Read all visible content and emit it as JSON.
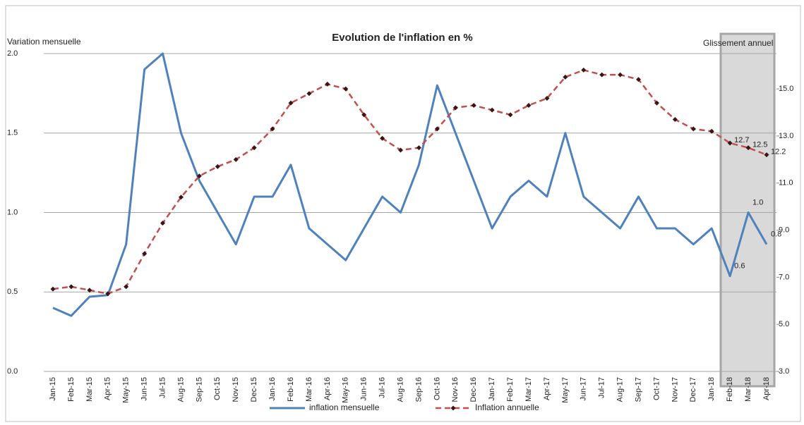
{
  "chart_data": {
    "type": "line",
    "title": "Evolution de l'inflation en %",
    "y_label": "Variation mensuelle",
    "y2_label": "Glissement annuel",
    "categories": [
      "Jan-15",
      "Feb-15",
      "Mar-15",
      "Apr-15",
      "May-15",
      "Jun-15",
      "Jul-15",
      "Aug-15",
      "Sep-15",
      "Oct-15",
      "Nov-15",
      "Dec-15",
      "Jan-16",
      "Feb-16",
      "Mar-16",
      "Apr-16",
      "May-16",
      "Jun-16",
      "Jul-16",
      "Aug-16",
      "Sep-16",
      "Oct-16",
      "Nov-16",
      "Dec-16",
      "Jan-17",
      "Feb-17",
      "Mar-17",
      "Apr-17",
      "May-17",
      "Jun-17",
      "Jul-17",
      "Aug-17",
      "Sep-17",
      "Oct-17",
      "Nov-17",
      "Dec-17",
      "Jan-18",
      "Feb-18",
      "Mar-18",
      "Apr-18"
    ],
    "series": [
      {
        "name": "inflation mensuelle",
        "color": "#4f81bd",
        "style": "solid",
        "axis": "y",
        "values": [
          0.4,
          0.35,
          0.47,
          0.48,
          0.8,
          1.9,
          2.0,
          1.5,
          1.2,
          1.0,
          0.8,
          1.1,
          1.1,
          1.3,
          0.9,
          0.8,
          0.7,
          0.9,
          1.1,
          1.0,
          1.3,
          1.8,
          1.5,
          1.2,
          0.9,
          1.1,
          1.2,
          1.1,
          1.5,
          1.1,
          1.0,
          0.9,
          1.1,
          0.9,
          0.9,
          0.8,
          0.9,
          0.6,
          1.0,
          0.8
        ],
        "value_labels": [
          null,
          null,
          null,
          null,
          null,
          null,
          null,
          null,
          null,
          null,
          null,
          null,
          null,
          null,
          null,
          null,
          null,
          null,
          null,
          null,
          null,
          null,
          null,
          null,
          null,
          null,
          null,
          null,
          null,
          null,
          null,
          null,
          null,
          null,
          null,
          null,
          null,
          "0.6",
          "1.0",
          "0.8"
        ]
      },
      {
        "name": "Inflation annuelle",
        "color": "#c0504d",
        "style": "dashed",
        "marker_color": "#3b1515",
        "axis": "y2",
        "values": [
          6.5,
          6.6,
          6.45,
          6.3,
          6.6,
          8.0,
          9.3,
          10.4,
          11.3,
          11.7,
          12.0,
          12.5,
          13.3,
          14.4,
          14.8,
          15.2,
          15.0,
          13.9,
          12.9,
          12.4,
          12.5,
          13.3,
          14.2,
          14.3,
          14.1,
          13.9,
          14.3,
          14.6,
          15.5,
          15.8,
          15.6,
          15.6,
          15.4,
          14.4,
          13.7,
          13.3,
          13.2,
          12.7,
          12.5,
          12.2
        ],
        "value_labels": [
          null,
          null,
          null,
          null,
          null,
          null,
          null,
          null,
          null,
          null,
          null,
          null,
          null,
          null,
          null,
          null,
          null,
          null,
          null,
          null,
          null,
          null,
          null,
          null,
          null,
          null,
          null,
          null,
          null,
          null,
          null,
          null,
          null,
          null,
          null,
          null,
          null,
          "12.7",
          "12.5",
          "12.2"
        ]
      }
    ],
    "ylim": [
      0,
      2.0
    ],
    "yticks": [
      {
        "value": 0,
        "label": "0.0"
      },
      0.5,
      {
        "value": 1,
        "label": "1.0"
      },
      1.5,
      {
        "value": 2,
        "label": "2.0"
      }
    ],
    "y2lim": [
      3,
      16.5
    ],
    "y2ticks": [
      {
        "value": 3,
        "label": "3.0"
      },
      {
        "value": 5,
        "label": "5.0"
      },
      {
        "value": 7,
        "label": "7.0"
      },
      {
        "value": 9,
        "label": "9.0"
      },
      {
        "value": 11,
        "label": "11.0"
      },
      {
        "value": 13,
        "label": "13.0"
      },
      {
        "value": 15,
        "label": "15.0"
      }
    ],
    "grid": true,
    "legend": "bottom"
  }
}
